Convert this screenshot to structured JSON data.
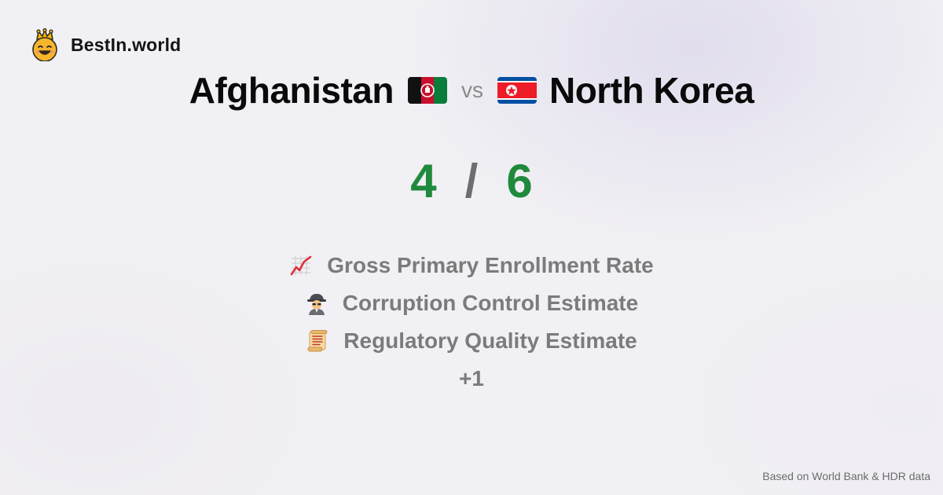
{
  "brand": {
    "name": "BestIn.world",
    "logo_icon": "crowned-smiley-icon"
  },
  "comparison": {
    "left_country": "Afghanistan",
    "left_flag": "afghanistan-flag-icon",
    "vs_label": "vs",
    "right_country": "North Korea",
    "right_flag": "north-korea-flag-icon"
  },
  "score": {
    "left": "4",
    "separator": "/",
    "right": "6",
    "color": "#1f8a3c"
  },
  "metrics": [
    {
      "icon": "chart-increasing-icon",
      "label": "Gross Primary Enrollment Rate"
    },
    {
      "icon": "detective-icon",
      "label": "Corruption Control Estimate"
    },
    {
      "icon": "scroll-icon",
      "label": "Regulatory Quality Estimate"
    }
  ],
  "more_label": "+1",
  "footer": {
    "source": "Based on World Bank & HDR data"
  }
}
